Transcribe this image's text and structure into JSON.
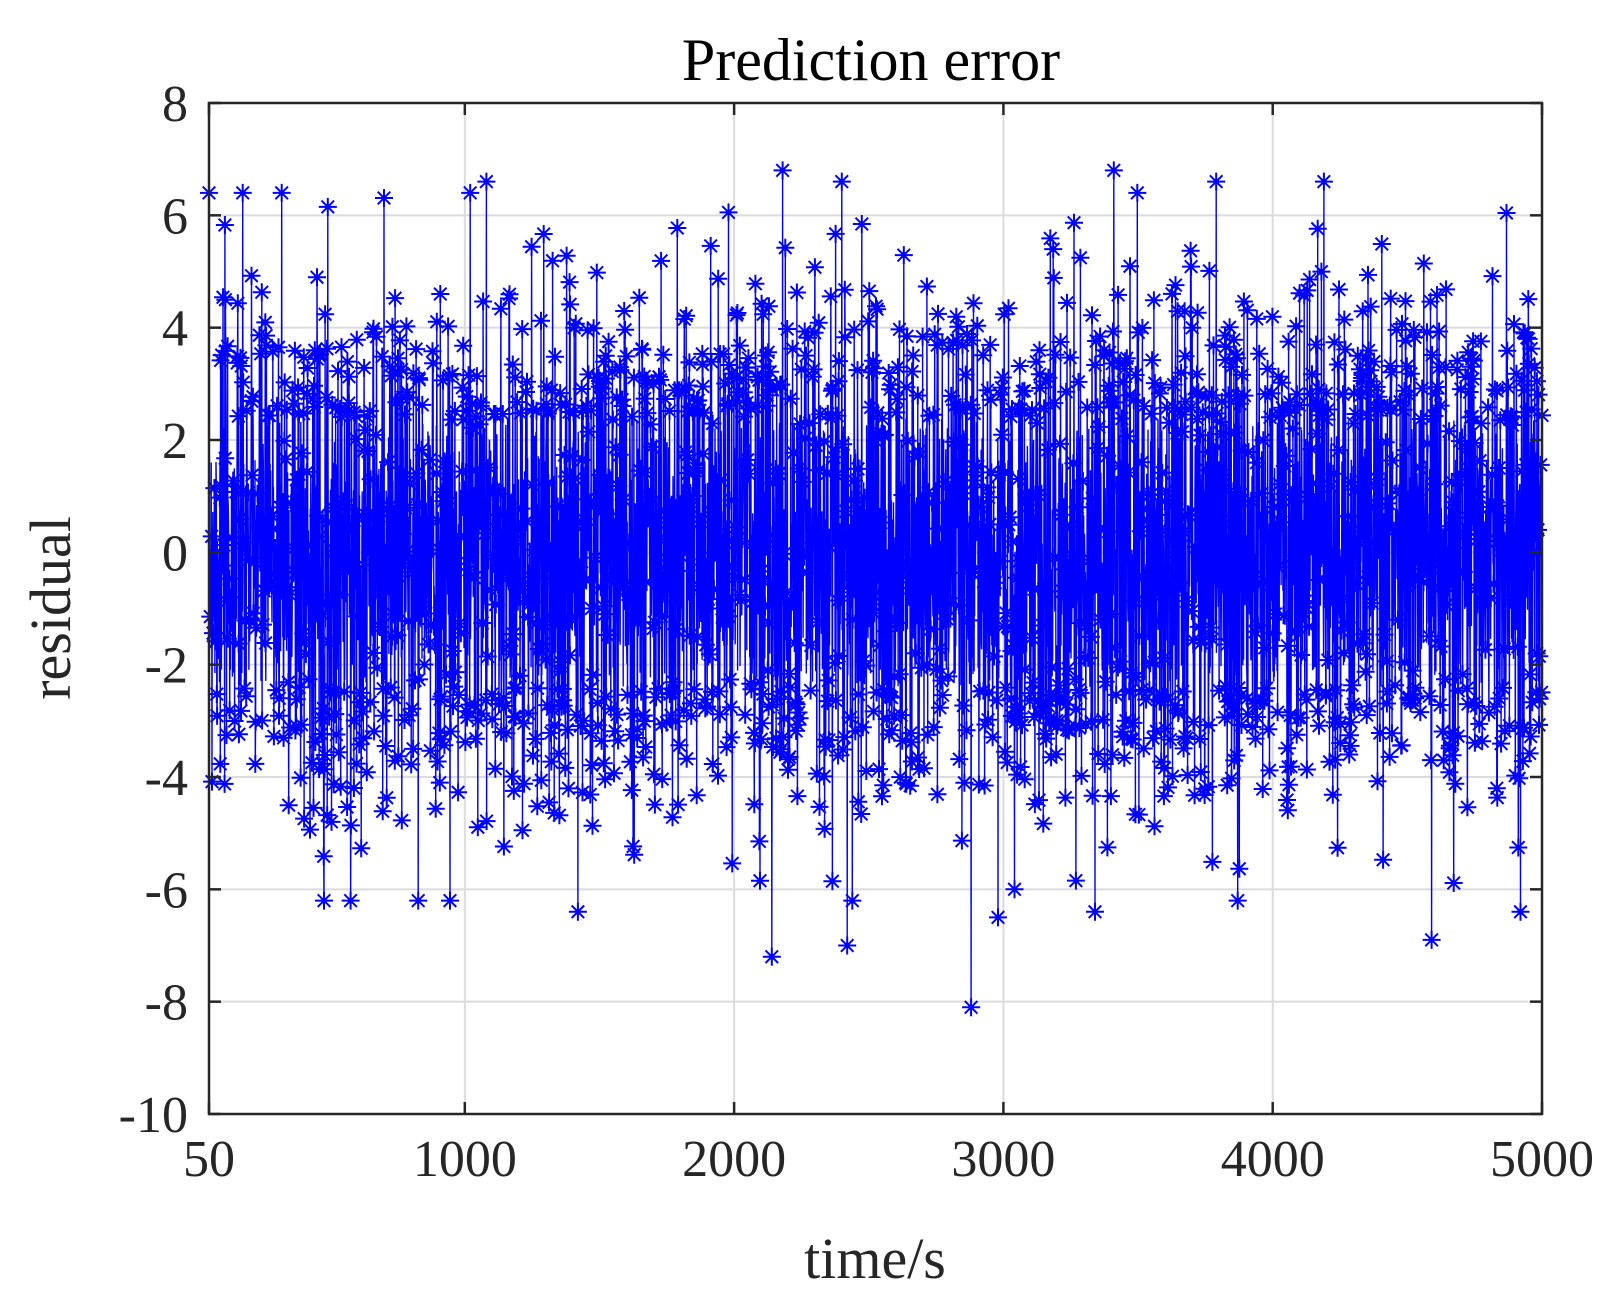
{
  "chart_data": {
    "type": "line",
    "title": "Prediction error",
    "xlabel": "time/s",
    "ylabel": "residual",
    "xlim": [
      50,
      5000
    ],
    "ylim": [
      -10,
      8
    ],
    "x_ticks": [
      50,
      1000,
      2000,
      3000,
      4000,
      5000
    ],
    "x_tick_labels": [
      "50",
      "1000",
      "2000",
      "3000",
      "4000",
      "5000"
    ],
    "y_ticks": [
      -10,
      -8,
      -6,
      -4,
      -2,
      0,
      2,
      4,
      6,
      8
    ],
    "y_tick_labels": [
      "-10",
      "-8",
      "-6",
      "-4",
      "-2",
      "0",
      "2",
      "4",
      "6",
      "8"
    ],
    "grid": true,
    "marker": "asterisk",
    "line_color": "#0000ff",
    "series": [
      {
        "x_start": 50,
        "x_end": 5000,
        "x_step": 1,
        "noise_std": 2.0,
        "notable_points": [
          {
            "x": 2880,
            "y": -8.1
          },
          {
            "x": 2140,
            "y": -7.2
          },
          {
            "x": 2420,
            "y": -7.0
          },
          {
            "x": 4590,
            "y": -6.9
          },
          {
            "x": 2180,
            "y": 6.8
          },
          {
            "x": 3410,
            "y": 6.8
          },
          {
            "x": 3790,
            "y": 6.6
          },
          {
            "x": 4190,
            "y": 6.6
          },
          {
            "x": 2400,
            "y": 6.6
          },
          {
            "x": 1080,
            "y": 6.6
          },
          {
            "x": 320,
            "y": 6.4
          },
          {
            "x": 1020,
            "y": 6.4
          },
          {
            "x": 2980,
            "y": -6.5
          },
          {
            "x": 1420,
            "y": -6.4
          },
          {
            "x": 4920,
            "y": -6.4
          },
          {
            "x": 3340,
            "y": -6.4
          }
        ]
      }
    ]
  }
}
